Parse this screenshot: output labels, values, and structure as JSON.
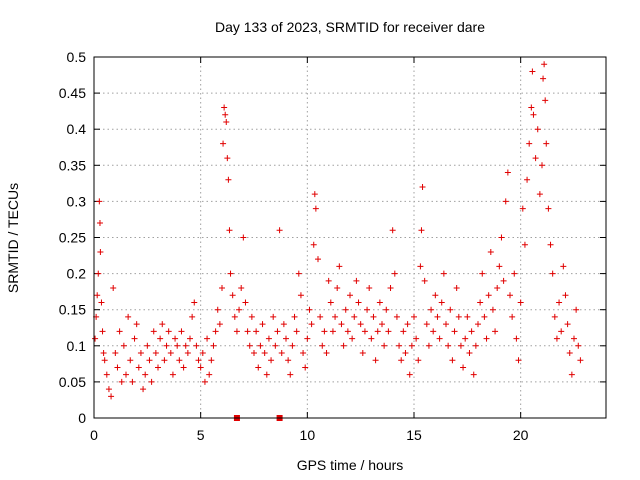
{
  "chart_data": {
    "type": "scatter",
    "title": "Day 133 of 2023, SRMTID for receiver dare",
    "xlabel": "GPS time / hours",
    "ylabel": "SRMTID / TECUs",
    "xlim": [
      0,
      24
    ],
    "ylim": [
      0,
      0.5
    ],
    "xticks": [
      0,
      5,
      10,
      15,
      20
    ],
    "yticks": [
      0,
      0.05,
      0.1,
      0.15,
      0.2,
      0.25,
      0.3,
      0.35,
      0.4,
      0.45,
      0.5
    ],
    "xtick_labels": [
      "0",
      "5",
      "10",
      "15",
      "20"
    ],
    "ytick_labels": [
      "0",
      "0.05",
      "0.1",
      "0.15",
      "0.2",
      "0.25",
      "0.3",
      "0.35",
      "0.4",
      "0.45",
      "0.5"
    ],
    "grid": true,
    "marker": "+",
    "color": "#e00000",
    "zero_marks_x": [
      6.7,
      8.7
    ],
    "series": [
      {
        "name": "SRMTID",
        "points": [
          [
            0.05,
            0.11
          ],
          [
            0.1,
            0.14
          ],
          [
            0.15,
            0.17
          ],
          [
            0.2,
            0.2
          ],
          [
            0.25,
            0.3
          ],
          [
            0.28,
            0.27
          ],
          [
            0.3,
            0.23
          ],
          [
            0.35,
            0.16
          ],
          [
            0.4,
            0.12
          ],
          [
            0.45,
            0.09
          ],
          [
            0.5,
            0.08
          ],
          [
            0.6,
            0.06
          ],
          [
            0.7,
            0.04
          ],
          [
            0.8,
            0.03
          ],
          [
            0.9,
            0.18
          ],
          [
            1.0,
            0.09
          ],
          [
            1.1,
            0.07
          ],
          [
            1.2,
            0.12
          ],
          [
            1.3,
            0.05
          ],
          [
            1.4,
            0.1
          ],
          [
            1.5,
            0.06
          ],
          [
            1.6,
            0.14
          ],
          [
            1.7,
            0.08
          ],
          [
            1.8,
            0.05
          ],
          [
            1.9,
            0.11
          ],
          [
            2.0,
            0.13
          ],
          [
            2.1,
            0.07
          ],
          [
            2.2,
            0.09
          ],
          [
            2.3,
            0.04
          ],
          [
            2.4,
            0.06
          ],
          [
            2.5,
            0.1
          ],
          [
            2.6,
            0.08
          ],
          [
            2.7,
            0.05
          ],
          [
            2.8,
            0.12
          ],
          [
            2.9,
            0.09
          ],
          [
            3.0,
            0.07
          ],
          [
            3.1,
            0.11
          ],
          [
            3.2,
            0.13
          ],
          [
            3.3,
            0.08
          ],
          [
            3.4,
            0.1
          ],
          [
            3.5,
            0.12
          ],
          [
            3.6,
            0.09
          ],
          [
            3.7,
            0.06
          ],
          [
            3.8,
            0.11
          ],
          [
            3.9,
            0.1
          ],
          [
            4.0,
            0.08
          ],
          [
            4.1,
            0.12
          ],
          [
            4.2,
            0.07
          ],
          [
            4.3,
            0.1
          ],
          [
            4.4,
            0.09
          ],
          [
            4.5,
            0.11
          ],
          [
            4.6,
            0.14
          ],
          [
            4.7,
            0.16
          ],
          [
            4.8,
            0.1
          ],
          [
            4.9,
            0.08
          ],
          [
            5.0,
            0.07
          ],
          [
            5.1,
            0.09
          ],
          [
            5.2,
            0.05
          ],
          [
            5.3,
            0.11
          ],
          [
            5.4,
            0.06
          ],
          [
            5.5,
            0.08
          ],
          [
            5.6,
            0.1
          ],
          [
            5.7,
            0.12
          ],
          [
            5.8,
            0.15
          ],
          [
            5.9,
            0.13
          ],
          [
            6.0,
            0.18
          ],
          [
            6.05,
            0.38
          ],
          [
            6.1,
            0.43
          ],
          [
            6.15,
            0.42
          ],
          [
            6.2,
            0.41
          ],
          [
            6.25,
            0.36
          ],
          [
            6.3,
            0.33
          ],
          [
            6.35,
            0.26
          ],
          [
            6.4,
            0.2
          ],
          [
            6.5,
            0.17
          ],
          [
            6.6,
            0.14
          ],
          [
            6.7,
            0.12
          ],
          [
            6.8,
            0.15
          ],
          [
            6.9,
            0.18
          ],
          [
            7.0,
            0.25
          ],
          [
            7.1,
            0.16
          ],
          [
            7.2,
            0.12
          ],
          [
            7.3,
            0.1
          ],
          [
            7.4,
            0.14
          ],
          [
            7.5,
            0.09
          ],
          [
            7.6,
            0.12
          ],
          [
            7.7,
            0.07
          ],
          [
            7.8,
            0.1
          ],
          [
            7.9,
            0.13
          ],
          [
            8.0,
            0.09
          ],
          [
            8.1,
            0.06
          ],
          [
            8.2,
            0.11
          ],
          [
            8.3,
            0.08
          ],
          [
            8.4,
            0.14
          ],
          [
            8.5,
            0.1
          ],
          [
            8.6,
            0.12
          ],
          [
            8.7,
            0.26
          ],
          [
            8.8,
            0.09
          ],
          [
            8.9,
            0.13
          ],
          [
            9.0,
            0.11
          ],
          [
            9.1,
            0.08
          ],
          [
            9.2,
            0.06
          ],
          [
            9.3,
            0.1
          ],
          [
            9.4,
            0.14
          ],
          [
            9.5,
            0.12
          ],
          [
            9.6,
            0.2
          ],
          [
            9.7,
            0.17
          ],
          [
            9.8,
            0.09
          ],
          [
            9.9,
            0.07
          ],
          [
            10.0,
            0.11
          ],
          [
            10.1,
            0.15
          ],
          [
            10.2,
            0.13
          ],
          [
            10.3,
            0.24
          ],
          [
            10.35,
            0.31
          ],
          [
            10.4,
            0.29
          ],
          [
            10.5,
            0.22
          ],
          [
            10.6,
            0.14
          ],
          [
            10.7,
            0.1
          ],
          [
            10.8,
            0.12
          ],
          [
            10.9,
            0.09
          ],
          [
            11.0,
            0.19
          ],
          [
            11.1,
            0.16
          ],
          [
            11.2,
            0.12
          ],
          [
            11.3,
            0.14
          ],
          [
            11.4,
            0.18
          ],
          [
            11.5,
            0.21
          ],
          [
            11.6,
            0.13
          ],
          [
            11.7,
            0.1
          ],
          [
            11.8,
            0.15
          ],
          [
            11.9,
            0.12
          ],
          [
            12.0,
            0.17
          ],
          [
            12.1,
            0.11
          ],
          [
            12.2,
            0.14
          ],
          [
            12.3,
            0.19
          ],
          [
            12.4,
            0.16
          ],
          [
            12.5,
            0.13
          ],
          [
            12.6,
            0.09
          ],
          [
            12.7,
            0.12
          ],
          [
            12.8,
            0.15
          ],
          [
            12.9,
            0.18
          ],
          [
            13.0,
            0.11
          ],
          [
            13.1,
            0.14
          ],
          [
            13.2,
            0.08
          ],
          [
            13.3,
            0.12
          ],
          [
            13.4,
            0.16
          ],
          [
            13.5,
            0.13
          ],
          [
            13.6,
            0.1
          ],
          [
            13.7,
            0.15
          ],
          [
            13.8,
            0.12
          ],
          [
            13.9,
            0.18
          ],
          [
            14.0,
            0.26
          ],
          [
            14.1,
            0.2
          ],
          [
            14.2,
            0.14
          ],
          [
            14.3,
            0.1
          ],
          [
            14.4,
            0.08
          ],
          [
            14.5,
            0.12
          ],
          [
            14.6,
            0.09
          ],
          [
            14.7,
            0.13
          ],
          [
            14.8,
            0.06
          ],
          [
            14.9,
            0.1
          ],
          [
            15.0,
            0.14
          ],
          [
            15.1,
            0.11
          ],
          [
            15.2,
            0.08
          ],
          [
            15.3,
            0.21
          ],
          [
            15.35,
            0.26
          ],
          [
            15.4,
            0.32
          ],
          [
            15.5,
            0.19
          ],
          [
            15.6,
            0.13
          ],
          [
            15.7,
            0.1
          ],
          [
            15.8,
            0.15
          ],
          [
            15.9,
            0.12
          ],
          [
            16.0,
            0.17
          ],
          [
            16.1,
            0.14
          ],
          [
            16.2,
            0.11
          ],
          [
            16.3,
            0.16
          ],
          [
            16.4,
            0.2
          ],
          [
            16.5,
            0.13
          ],
          [
            16.6,
            0.1
          ],
          [
            16.7,
            0.15
          ],
          [
            16.8,
            0.08
          ],
          [
            16.9,
            0.12
          ],
          [
            17.0,
            0.18
          ],
          [
            17.1,
            0.14
          ],
          [
            17.2,
            0.1
          ],
          [
            17.3,
            0.07
          ],
          [
            17.4,
            0.11
          ],
          [
            17.5,
            0.14
          ],
          [
            17.6,
            0.09
          ],
          [
            17.7,
            0.12
          ],
          [
            17.8,
            0.06
          ],
          [
            17.9,
            0.1
          ],
          [
            18.0,
            0.13
          ],
          [
            18.1,
            0.16
          ],
          [
            18.2,
            0.2
          ],
          [
            18.3,
            0.14
          ],
          [
            18.4,
            0.11
          ],
          [
            18.5,
            0.17
          ],
          [
            18.6,
            0.23
          ],
          [
            18.7,
            0.15
          ],
          [
            18.8,
            0.12
          ],
          [
            18.9,
            0.18
          ],
          [
            19.0,
            0.21
          ],
          [
            19.1,
            0.25
          ],
          [
            19.2,
            0.19
          ],
          [
            19.3,
            0.3
          ],
          [
            19.4,
            0.34
          ],
          [
            19.5,
            0.17
          ],
          [
            19.6,
            0.14
          ],
          [
            19.7,
            0.2
          ],
          [
            19.8,
            0.11
          ],
          [
            19.9,
            0.08
          ],
          [
            20.0,
            0.16
          ],
          [
            20.1,
            0.29
          ],
          [
            20.2,
            0.24
          ],
          [
            20.3,
            0.33
          ],
          [
            20.4,
            0.38
          ],
          [
            20.5,
            0.43
          ],
          [
            20.55,
            0.48
          ],
          [
            20.6,
            0.42
          ],
          [
            20.7,
            0.36
          ],
          [
            20.8,
            0.4
          ],
          [
            20.9,
            0.31
          ],
          [
            21.0,
            0.35
          ],
          [
            21.05,
            0.47
          ],
          [
            21.1,
            0.49
          ],
          [
            21.15,
            0.44
          ],
          [
            21.2,
            0.38
          ],
          [
            21.3,
            0.29
          ],
          [
            21.4,
            0.24
          ],
          [
            21.5,
            0.2
          ],
          [
            21.6,
            0.14
          ],
          [
            21.7,
            0.11
          ],
          [
            21.8,
            0.16
          ],
          [
            21.9,
            0.12
          ],
          [
            22.0,
            0.21
          ],
          [
            22.1,
            0.17
          ],
          [
            22.2,
            0.13
          ],
          [
            22.3,
            0.09
          ],
          [
            22.4,
            0.06
          ],
          [
            22.5,
            0.11
          ],
          [
            22.6,
            0.15
          ],
          [
            22.7,
            0.1
          ],
          [
            22.8,
            0.08
          ]
        ]
      }
    ]
  }
}
